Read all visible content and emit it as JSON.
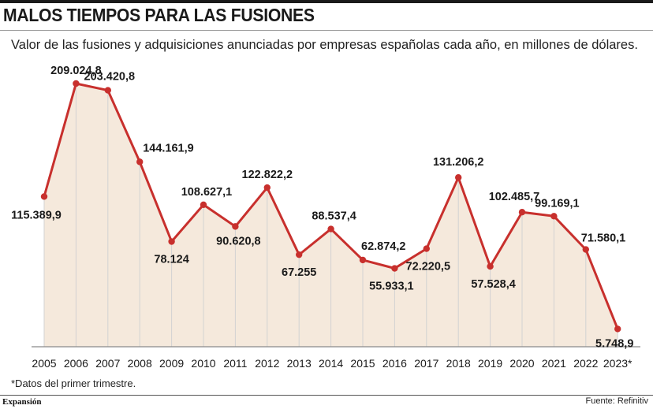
{
  "header": {
    "title": "MALOS TIEMPOS PARA LAS FUSIONES",
    "subtitle": "Valor de las fusiones y adquisiciones anunciadas por empresas españolas cada año, en millones de dólares."
  },
  "footer": {
    "footnote": "*Datos del primer trimestre.",
    "brand": "Expansión",
    "source": "Fuente: Refinitiv"
  },
  "colors": {
    "line": "#c8302d",
    "fill": "#f5e9dc",
    "grid": "#d2d2d2"
  },
  "chart_data": {
    "type": "area",
    "title": "MALOS TIEMPOS PARA LAS FUSIONES",
    "subtitle": "Valor de las fusiones y adquisiciones anunciadas por empresas españolas cada año, en millones de dólares.",
    "xlabel": "",
    "ylabel": "",
    "categories": [
      "2005",
      "2006",
      "2007",
      "2008",
      "2009",
      "2010",
      "2011",
      "2012",
      "2013",
      "2014",
      "2015",
      "2016",
      "2017",
      "2018",
      "2019",
      "2020",
      "2021",
      "2022",
      "2023*"
    ],
    "values": [
      115389.9,
      209024.8,
      203420.8,
      144161.9,
      78124,
      108627.1,
      90620.8,
      122822.2,
      67255,
      88537.4,
      62874.2,
      55933.1,
      72220.5,
      131206.2,
      57528.4,
      102485.7,
      99169.1,
      71580.1,
      5748.9
    ],
    "value_labels": [
      "115.389,9",
      "209.024,8",
      "203.420,8",
      "144.161,9",
      "78.124",
      "108.627,1",
      "90.620,8",
      "122.822,2",
      "67.255",
      "88.537,4",
      "62.874,2",
      "55.933,1",
      "72.220,5",
      "131.206,2",
      "57.528,4",
      "102.485,7",
      "99.169,1",
      "71.580,1",
      "5.748,9"
    ],
    "ylim": [
      -9000,
      209024.8
    ],
    "grid": "vertical",
    "legend": "none",
    "markers": true
  }
}
